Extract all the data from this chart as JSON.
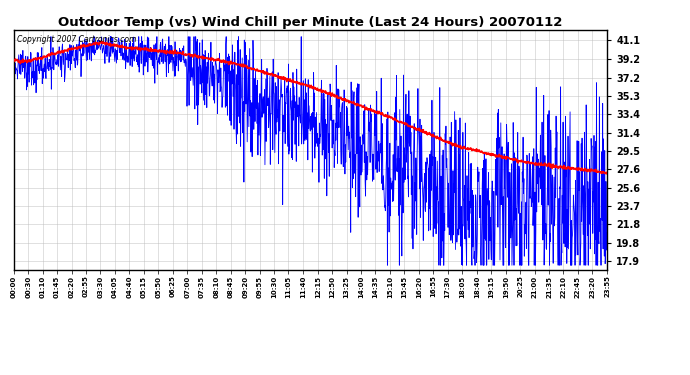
{
  "title": "Outdoor Temp (vs) Wind Chill per Minute (Last 24 Hours) 20070112",
  "copyright_text": "Copyright 2007 Cartronics.com",
  "yticks": [
    41.1,
    39.2,
    37.2,
    35.3,
    33.4,
    31.4,
    29.5,
    27.6,
    25.6,
    23.7,
    21.8,
    19.8,
    17.9
  ],
  "ylim": [
    17.0,
    42.2
  ],
  "xtick_labels": [
    "00:00",
    "00:30",
    "01:10",
    "01:45",
    "02:20",
    "02:55",
    "03:30",
    "04:05",
    "04:40",
    "05:15",
    "05:50",
    "06:25",
    "07:00",
    "07:35",
    "08:10",
    "08:45",
    "09:20",
    "09:55",
    "10:30",
    "11:05",
    "11:40",
    "12:15",
    "12:50",
    "13:25",
    "14:00",
    "14:35",
    "15:10",
    "15:45",
    "16:20",
    "16:55",
    "17:30",
    "18:05",
    "18:40",
    "19:15",
    "19:50",
    "20:25",
    "21:00",
    "21:35",
    "22:10",
    "22:45",
    "23:20",
    "23:55"
  ],
  "background_color": "#ffffff",
  "grid_color": "#bbbbbb",
  "blue_color": "#0000ff",
  "red_color": "#ff0000",
  "title_color": "#000000"
}
